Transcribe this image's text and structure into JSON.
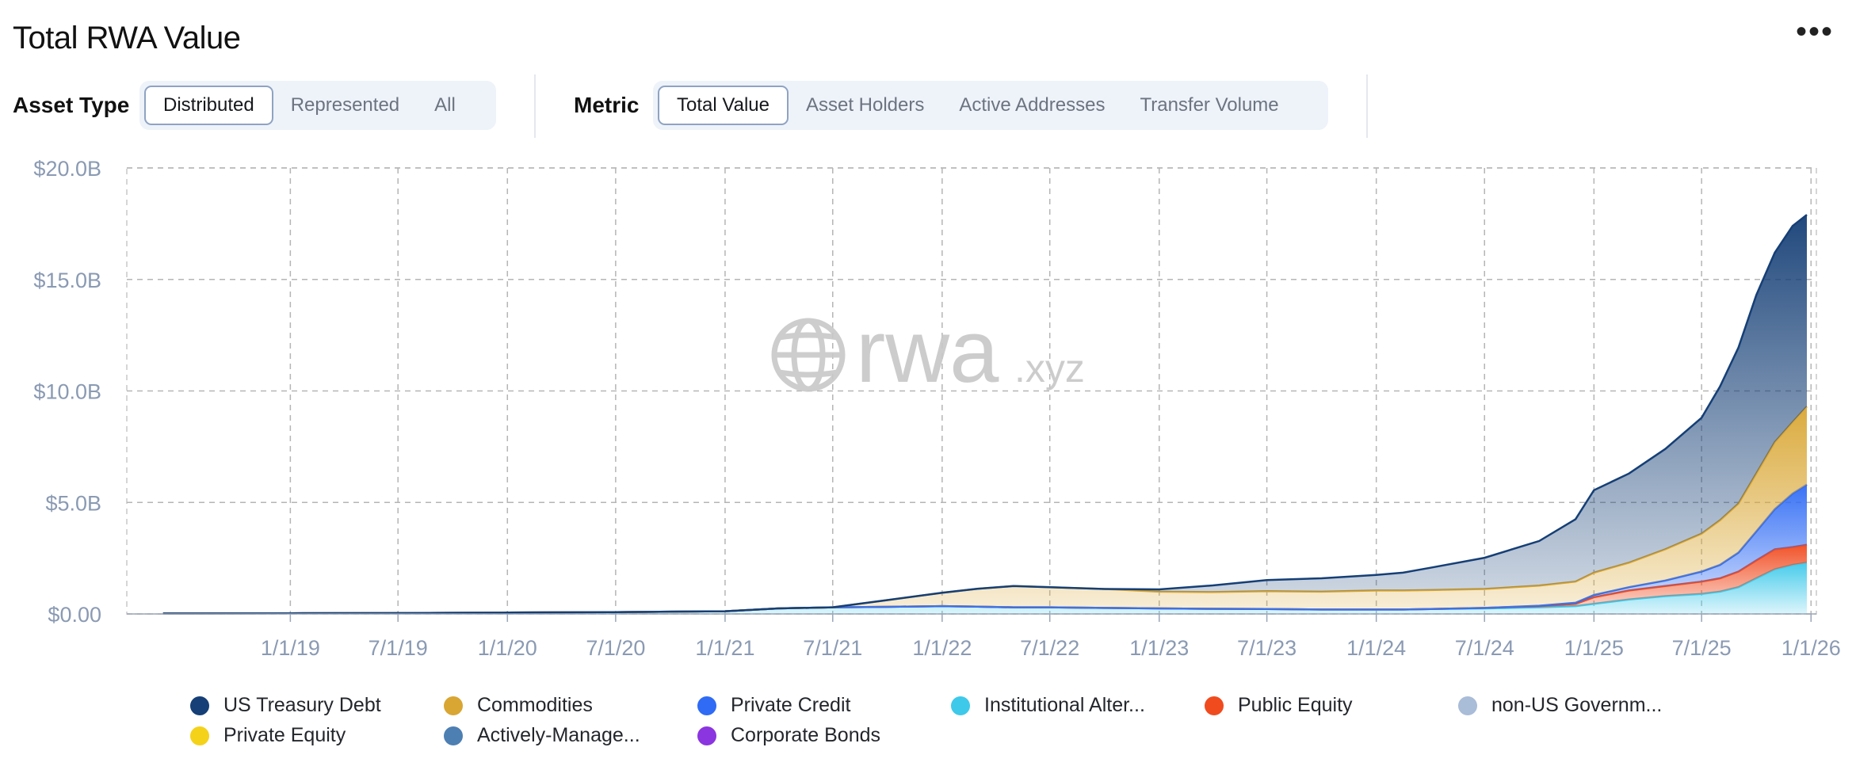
{
  "header": {
    "title": "Total RWA Value",
    "more_label": "•••"
  },
  "controls": {
    "asset_type": {
      "label": "Asset Type",
      "options": [
        "Distributed",
        "Represented",
        "All"
      ],
      "selected": "Distributed"
    },
    "metric": {
      "label": "Metric",
      "options": [
        "Total Value",
        "Asset Holders",
        "Active Addresses",
        "Transfer Volume"
      ],
      "selected": "Total Value"
    }
  },
  "watermark": {
    "brand": "rwa",
    "suffix": ".xyz",
    "icon": "globe-icon"
  },
  "chart_data": {
    "type": "area",
    "stacked": true,
    "grid": true,
    "legend_position": "bottom",
    "x_ticks": [
      "1/1/19",
      "7/1/19",
      "1/1/20",
      "7/1/20",
      "1/1/21",
      "7/1/21",
      "1/1/22",
      "7/1/22",
      "1/1/23",
      "7/1/23",
      "1/1/24",
      "7/1/24",
      "1/1/25",
      "7/1/25",
      "1/1/26"
    ],
    "y_ticks": [
      "$0.00",
      "$5.0B",
      "$10.0B",
      "$15.0B",
      "$20.0B"
    ],
    "ylim": [
      0,
      20
    ],
    "x": [
      "2018-06-01",
      "2019-01-01",
      "2019-07-01",
      "2020-01-01",
      "2020-07-01",
      "2021-01-01",
      "2021-04-01",
      "2021-07-01",
      "2021-10-01",
      "2022-01-01",
      "2022-03-01",
      "2022-05-01",
      "2022-07-01",
      "2022-10-01",
      "2023-01-01",
      "2023-04-01",
      "2023-07-01",
      "2023-10-01",
      "2024-01-01",
      "2024-02-15",
      "2024-04-01",
      "2024-07-01",
      "2024-10-01",
      "2024-12-01",
      "2025-01-01",
      "2025-03-01",
      "2025-05-01",
      "2025-07-01",
      "2025-08-01",
      "2025-09-01",
      "2025-10-01",
      "2025-11-01",
      "2025-12-01",
      "2025-12-25"
    ],
    "series": [
      {
        "name": "Institutional Alter...",
        "color": "#3ec9ea",
        "values": [
          0.02,
          0.03,
          0.04,
          0.06,
          0.08,
          0.12,
          0.25,
          0.3,
          0.32,
          0.35,
          0.33,
          0.3,
          0.3,
          0.27,
          0.25,
          0.23,
          0.22,
          0.2,
          0.2,
          0.2,
          0.22,
          0.25,
          0.3,
          0.35,
          0.45,
          0.65,
          0.8,
          0.9,
          1.0,
          1.2,
          1.6,
          2.0,
          2.2,
          2.3
        ]
      },
      {
        "name": "Public Equity",
        "color": "#f04b1f",
        "values": [
          0,
          0,
          0,
          0,
          0,
          0,
          0,
          0,
          0,
          0,
          0,
          0,
          0,
          0,
          0,
          0,
          0,
          0,
          0,
          0,
          0,
          0.02,
          0.05,
          0.1,
          0.3,
          0.4,
          0.45,
          0.55,
          0.6,
          0.7,
          0.8,
          0.9,
          0.8,
          0.8
        ]
      },
      {
        "name": "Private Credit",
        "color": "#2f6bf5",
        "values": [
          0,
          0,
          0,
          0,
          0,
          0,
          0,
          0,
          0,
          0,
          0,
          0,
          0,
          0,
          0,
          0,
          0,
          0,
          0,
          0,
          0,
          0,
          0.02,
          0.05,
          0.1,
          0.15,
          0.25,
          0.45,
          0.6,
          0.85,
          1.3,
          1.8,
          2.4,
          2.7
        ]
      },
      {
        "name": "Commodities",
        "color": "#d9a633",
        "values": [
          0,
          0,
          0,
          0,
          0,
          0,
          0,
          0,
          0.3,
          0.6,
          0.8,
          0.95,
          0.9,
          0.85,
          0.75,
          0.75,
          0.8,
          0.8,
          0.85,
          0.85,
          0.85,
          0.85,
          0.9,
          0.95,
          1.0,
          1.1,
          1.4,
          1.7,
          2.0,
          2.2,
          2.6,
          3.0,
          3.2,
          3.5
        ]
      },
      {
        "name": "US Treasury Debt",
        "color": "#153f76",
        "values": [
          0,
          0,
          0,
          0,
          0,
          0,
          0,
          0,
          0,
          0,
          0,
          0,
          0,
          0,
          0.1,
          0.3,
          0.5,
          0.6,
          0.7,
          0.8,
          1.0,
          1.4,
          2.0,
          2.8,
          3.7,
          4.0,
          4.5,
          5.2,
          6.0,
          7.0,
          8.0,
          8.5,
          8.8,
          8.6
        ]
      }
    ],
    "legend": [
      {
        "name": "US Treasury Debt",
        "color": "#153f76"
      },
      {
        "name": "Commodities",
        "color": "#d9a633"
      },
      {
        "name": "Private Credit",
        "color": "#2f6bf5"
      },
      {
        "name": "Institutional Alter...",
        "color": "#3ec9ea"
      },
      {
        "name": "Public Equity",
        "color": "#f04b1f"
      },
      {
        "name": "non-US Governm...",
        "color": "#a9bcd8"
      },
      {
        "name": "Private Equity",
        "color": "#f4d21a"
      },
      {
        "name": "Actively-Manage...",
        "color": "#4d7fb3"
      },
      {
        "name": "Corporate Bonds",
        "color": "#8b35e0"
      }
    ]
  }
}
